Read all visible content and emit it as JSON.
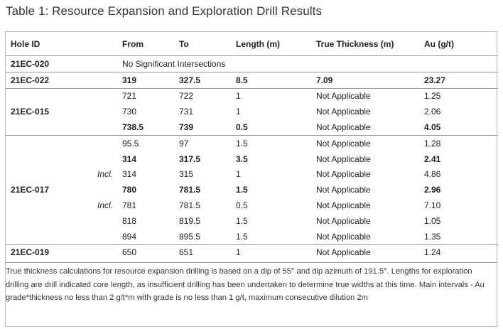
{
  "title": "Table 1: Resource Expansion and Exploration Drill Results",
  "headers": [
    "Hole ID",
    "",
    "From",
    "To",
    "Length (m)",
    "True Thickness (m)",
    "Au (g/t)"
  ],
  "rows": {
    "r0": {
      "hole": "21EC-020",
      "incl": "",
      "from": "No Significant Intersections",
      "to": "",
      "length": "",
      "true": "",
      "au": ""
    },
    "r1": {
      "hole": "21EC-022",
      "incl": "",
      "from": "319",
      "to": "327.5",
      "length": "8.5",
      "true": "7.09",
      "au": "23.27"
    },
    "r2": {
      "hole": "",
      "incl": "",
      "from": "721",
      "to": "722",
      "length": "1",
      "true": "Not Applicable",
      "au": "1.25"
    },
    "r3": {
      "hole": "21EC-015",
      "incl": "",
      "from": "730",
      "to": "731",
      "length": "1",
      "true": "Not Applicable",
      "au": "2.06"
    },
    "r4": {
      "hole": "",
      "incl": "",
      "from": "738.5",
      "to": "739",
      "length": "0.5",
      "true": "Not Applicable",
      "au": "4.05"
    },
    "r5": {
      "hole": "",
      "incl": "",
      "from": "95.5",
      "to": "97",
      "length": "1.5",
      "true": "Not Applicable",
      "au": "1.28"
    },
    "r6": {
      "hole": "",
      "incl": "",
      "from": "314",
      "to": "317.5",
      "length": "3.5",
      "true": "Not Applicable",
      "au": "2.41"
    },
    "r7": {
      "hole": "",
      "incl": "Incl.",
      "from": "314",
      "to": "315",
      "length": "1",
      "true": "Not Applicable",
      "au": "4.86"
    },
    "r8": {
      "hole": "21EC-017",
      "incl": "",
      "from": "780",
      "to": "781.5",
      "length": "1.5",
      "true": "Not Applicable",
      "au": "2.96"
    },
    "r9": {
      "hole": "",
      "incl": "Incl.",
      "from": "781",
      "to": "781.5",
      "length": "0.5",
      "true": "Not Applicable",
      "au": "7.10"
    },
    "r10": {
      "hole": "",
      "incl": "",
      "from": "818",
      "to": "819.5",
      "length": "1.5",
      "true": "Not Applicable",
      "au": "1.05"
    },
    "r11": {
      "hole": "",
      "incl": "",
      "from": "894",
      "to": "895.5",
      "length": "1.5",
      "true": "Not Applicable",
      "au": "1.35"
    },
    "r12": {
      "hole": "21EC-019",
      "incl": "",
      "from": "650",
      "to": "651",
      "length": "1",
      "true": "Not Applicable",
      "au": "1.24"
    }
  },
  "note": "True thickness calculations for resource expansion drilling is based on a dip of 55° and dip azimuth of 191.5°. Lengths for exploration drilling are drill indicated core length, as insufficient drilling has been undertaken to determine true widths at this time. Main intervals - Au grade*thickness no less than 2 g/t*m with grade is no less than 1 g/t, maximum consecutive dilution 2m"
}
